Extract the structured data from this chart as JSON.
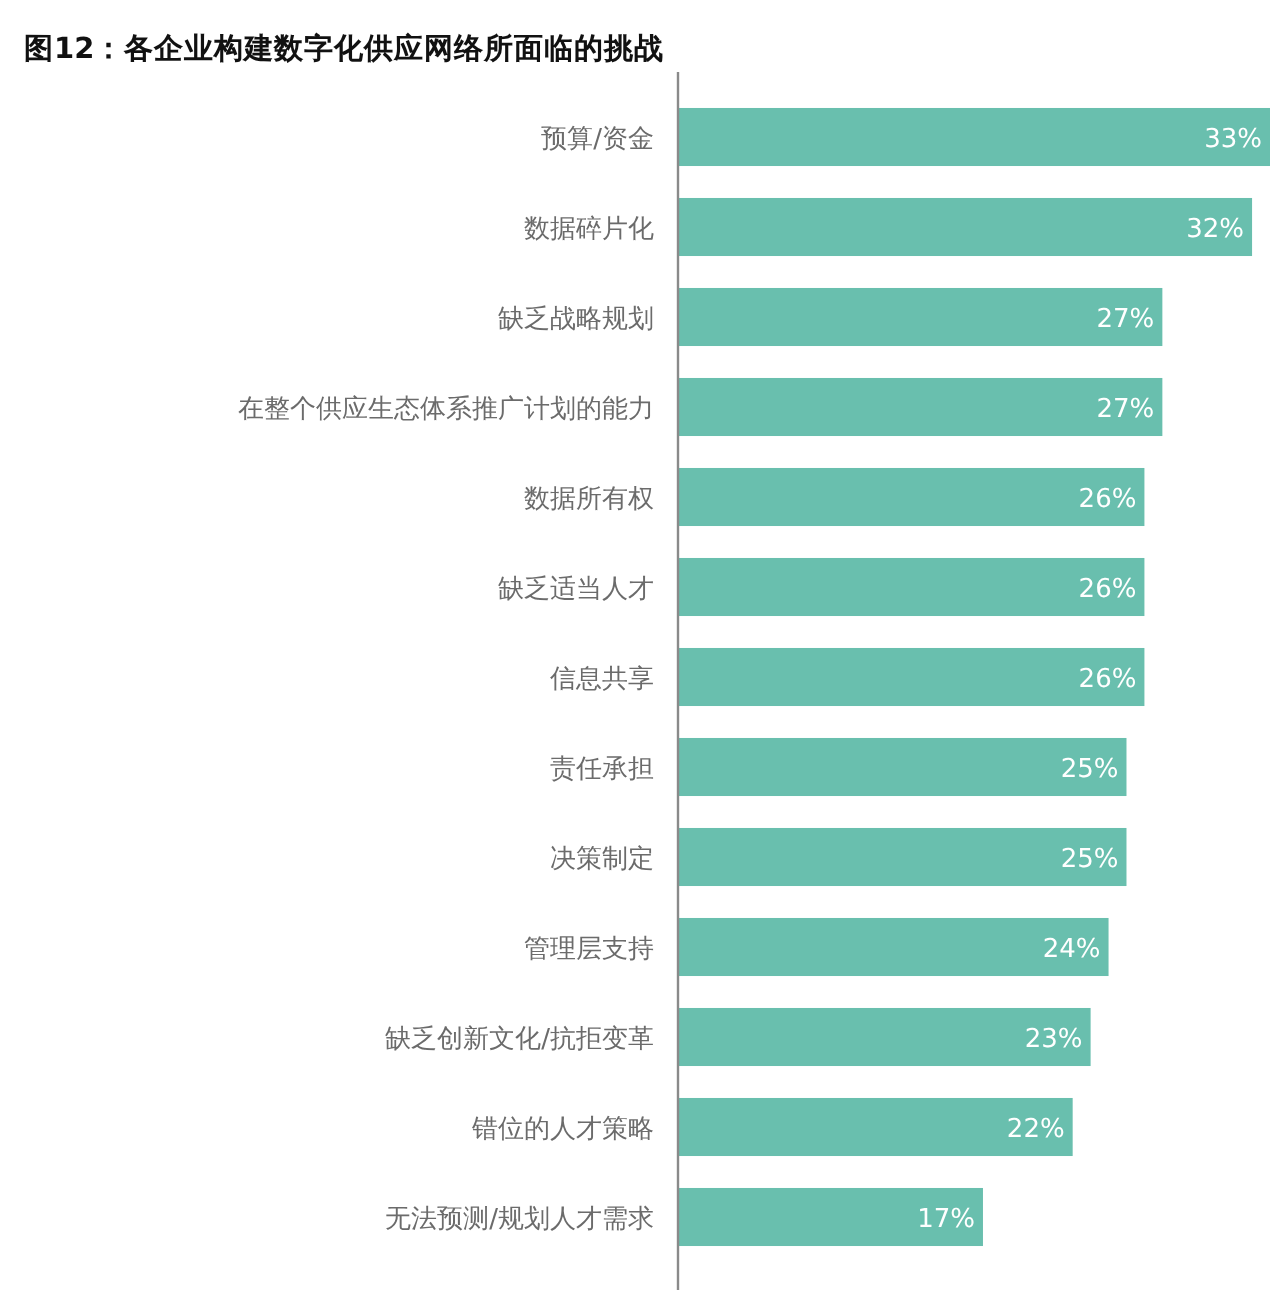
{
  "chart_data": {
    "type": "bar",
    "orientation": "horizontal",
    "title": "图12：各企业构建数字化供应网络所面临的挑战",
    "categories": [
      "预算/资金",
      "数据碎片化",
      "缺乏战略规划",
      "在整个供应生态体系推广计划的能力",
      "数据所有权",
      "缺乏适当人才",
      "信息共享",
      "责任承担",
      "决策制定",
      "管理层支持",
      "缺乏创新文化/抗拒变革",
      "错位的人才策略",
      "无法预测/规划人才需求"
    ],
    "values": [
      33,
      32,
      27,
      27,
      26,
      26,
      26,
      25,
      25,
      24,
      23,
      22,
      17
    ],
    "value_labels": [
      "33%",
      "32%",
      "27%",
      "27%",
      "26%",
      "26%",
      "26%",
      "25%",
      "25%",
      "24%",
      "23%",
      "22%",
      "17%"
    ],
    "color": "#69bfae"
  }
}
